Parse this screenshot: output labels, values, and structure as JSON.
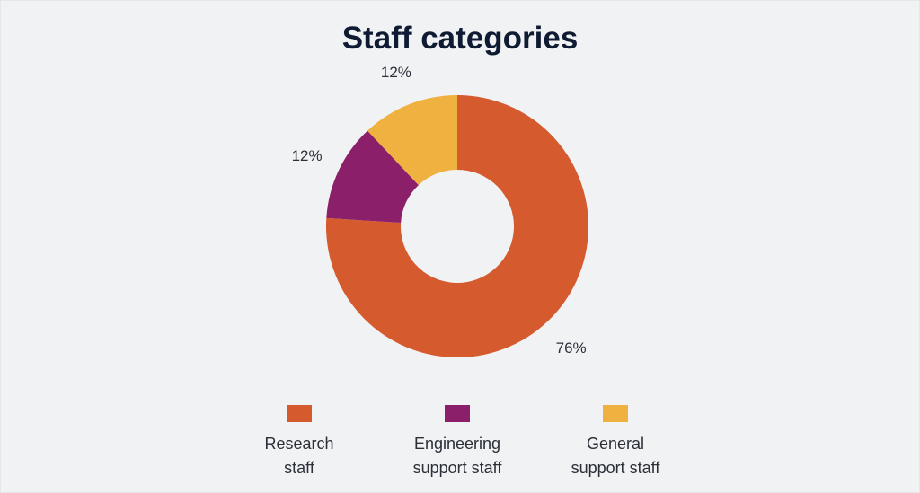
{
  "chart_data": {
    "type": "pie",
    "variant": "donut",
    "title": "Staff categories",
    "categories": [
      "Research staff",
      "Engineering support staff",
      "General support staff"
    ],
    "legend_labels": [
      [
        "Research",
        "staff"
      ],
      [
        "Engineering",
        "support staff"
      ],
      [
        "General",
        "support staff"
      ]
    ],
    "values": [
      76,
      12,
      12
    ],
    "data_labels": [
      "76%",
      "12%",
      "12%"
    ],
    "unit": "%",
    "legend_position": "bottom",
    "colors": [
      "#d55a2e",
      "#8c1f6a",
      "#efb241"
    ]
  }
}
